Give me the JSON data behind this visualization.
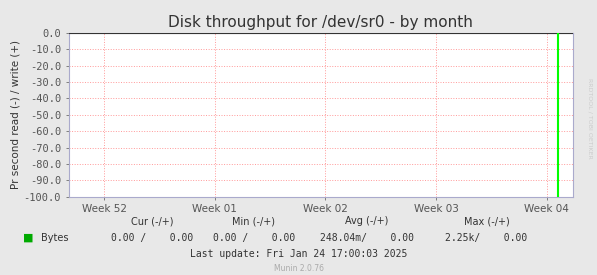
{
  "title": "Disk throughput for /dev/sr0 - by month",
  "ylabel": "Pr second read (-) / write (+)",
  "background_color": "#e8e8e8",
  "plot_bg_color": "#ffffff",
  "grid_color": "#ff9999",
  "ylim": [
    -100,
    0
  ],
  "yticks": [
    0.0,
    -10.0,
    -20.0,
    -30.0,
    -40.0,
    -50.0,
    -60.0,
    -70.0,
    -80.0,
    -90.0,
    -100.0
  ],
  "ytick_labels": [
    "0.0",
    "-10.0",
    "-20.0",
    "-30.0",
    "-40.0",
    "-50.0",
    "-60.0",
    "-70.0",
    "-80.0",
    "-90.0",
    "-100.0"
  ],
  "xtick_labels": [
    "Week 52",
    "Week 01",
    "Week 02",
    "Week 03",
    "Week 04"
  ],
  "xtick_positions": [
    0.0,
    0.25,
    0.5,
    0.75,
    1.0
  ],
  "line_color": "#00ff00",
  "line_width": 1.5,
  "title_color": "#333333",
  "title_fontsize": 11,
  "tick_fontsize": 7.5,
  "ylabel_fontsize": 7.5,
  "legend_label": "Bytes",
  "legend_color": "#00aa00",
  "rrdtool_text": "RRDTOOL / TOBI OETIKER",
  "axis_spine_color": "#aaaacc",
  "footer_mono_color": "#333333",
  "footer_gray_color": "#aaaaaa",
  "munin_version": "Munin 2.0.76"
}
